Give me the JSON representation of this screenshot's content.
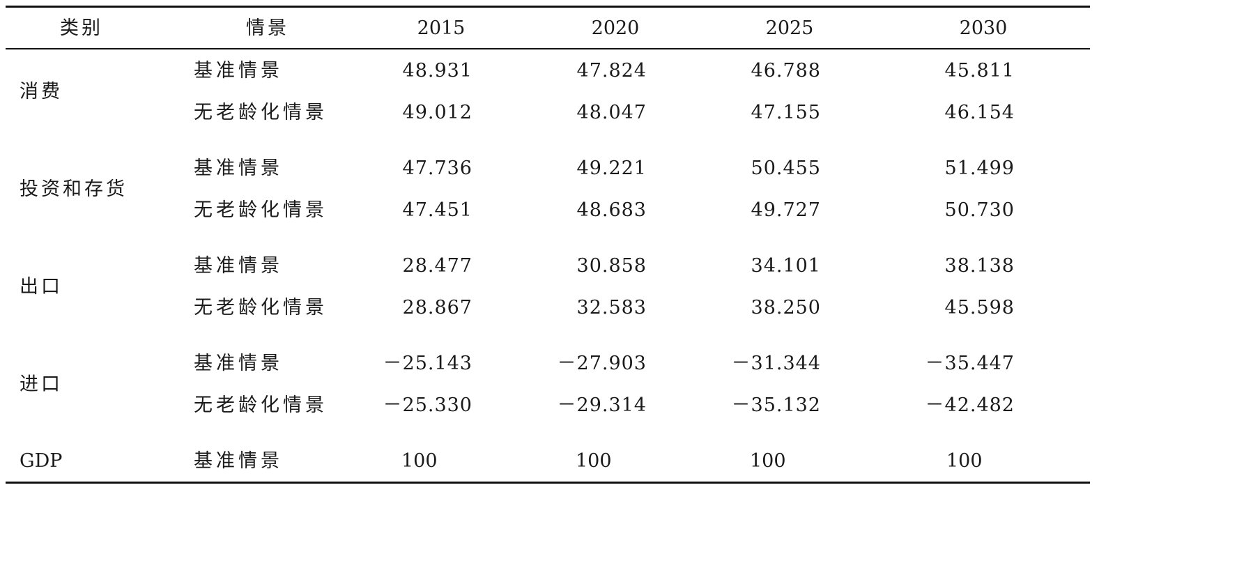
{
  "table": {
    "headers": {
      "category": "类别",
      "scenario": "情景",
      "years": [
        "2015",
        "2020",
        "2025",
        "2030"
      ]
    },
    "groups": [
      {
        "category": "消费",
        "rows": [
          {
            "scenario": "基准情景",
            "values": [
              "48.931",
              "47.824",
              "46.788",
              "45.811"
            ]
          },
          {
            "scenario": "无老龄化情景",
            "values": [
              "49.012",
              "48.047",
              "47.155",
              "46.154"
            ]
          }
        ]
      },
      {
        "category": "投资和存货",
        "rows": [
          {
            "scenario": "基准情景",
            "values": [
              "47.736",
              "49.221",
              "50.455",
              "51.499"
            ]
          },
          {
            "scenario": "无老龄化情景",
            "values": [
              "47.451",
              "48.683",
              "49.727",
              "50.730"
            ]
          }
        ]
      },
      {
        "category": "出口",
        "rows": [
          {
            "scenario": "基准情景",
            "values": [
              "28.477",
              "30.858",
              "34.101",
              "38.138"
            ]
          },
          {
            "scenario": "无老龄化情景",
            "values": [
              "28.867",
              "32.583",
              "38.250",
              "45.598"
            ]
          }
        ]
      },
      {
        "category": "进口",
        "rows": [
          {
            "scenario": "基准情景",
            "values": [
              "－25.143",
              "－27.903",
              "－31.344",
              "－35.447"
            ]
          },
          {
            "scenario": "无老龄化情景",
            "values": [
              "－25.330",
              "－29.314",
              "－35.132",
              "－42.482"
            ]
          }
        ]
      },
      {
        "category": "GDP",
        "rows": [
          {
            "scenario": "基准情景",
            "values": [
              "100",
              "100",
              "100",
              "100"
            ]
          }
        ]
      }
    ]
  }
}
